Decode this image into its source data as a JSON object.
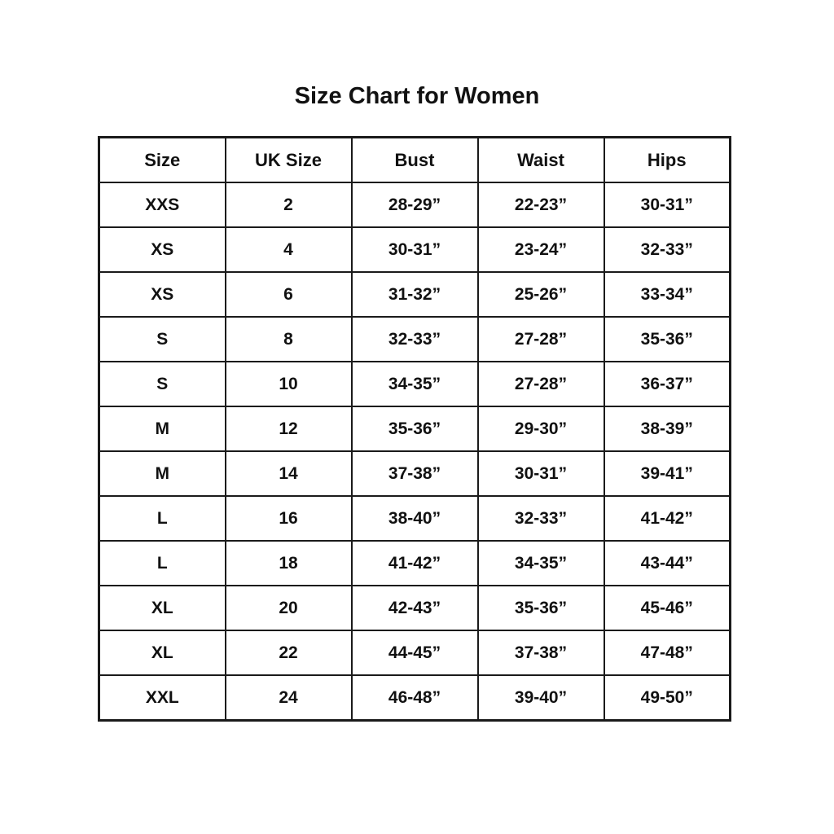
{
  "title": "Size Chart for Women",
  "chart_data": {
    "type": "table",
    "title": "Size Chart for Women",
    "columns": [
      "Size",
      "UK Size",
      "Bust",
      "Waist",
      "Hips"
    ],
    "rows": [
      [
        "XXS",
        "2",
        "28-29”",
        "22-23”",
        "30-31”"
      ],
      [
        "XS",
        "4",
        "30-31”",
        "23-24”",
        "32-33”"
      ],
      [
        "XS",
        "6",
        "31-32”",
        "25-26”",
        "33-34”"
      ],
      [
        "S",
        "8",
        "32-33”",
        "27-28”",
        "35-36”"
      ],
      [
        "S",
        "10",
        "34-35”",
        "27-28”",
        "36-37”"
      ],
      [
        "M",
        "12",
        "35-36”",
        "29-30”",
        "38-39”"
      ],
      [
        "M",
        "14",
        "37-38”",
        "30-31”",
        "39-41”"
      ],
      [
        "L",
        "16",
        "38-40”",
        "32-33”",
        "41-42”"
      ],
      [
        "L",
        "18",
        "41-42”",
        "34-35”",
        "43-44”"
      ],
      [
        "XL",
        "20",
        "42-43”",
        "35-36”",
        "45-46”"
      ],
      [
        "XL",
        "22",
        "44-45”",
        "37-38”",
        "47-48”"
      ],
      [
        "XXL",
        "24",
        "46-48”",
        "39-40”",
        "49-50”"
      ]
    ],
    "layout": {
      "grid": "full-borders",
      "text_color": "#111111",
      "border_color": "#1a1a1a",
      "background": "#ffffff"
    }
  }
}
